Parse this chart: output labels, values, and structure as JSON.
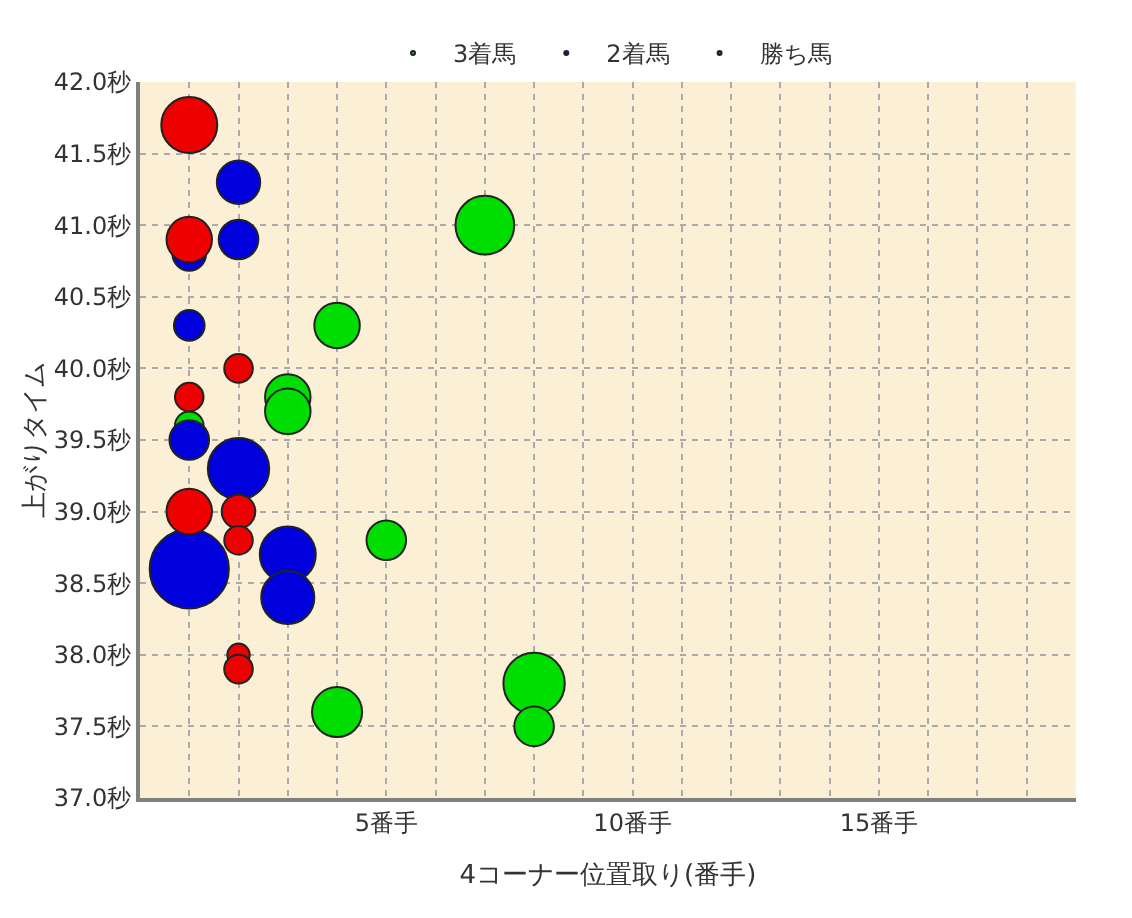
{
  "chart_data": {
    "type": "bubble",
    "xlabel": "4コーナー位置取り(番手)",
    "ylabel": "上がりタイム",
    "xlim": [
      0,
      19
    ],
    "ylim": [
      37.0,
      42.0
    ],
    "xticks": [
      {
        "value": 1,
        "label": null
      },
      {
        "value": 2,
        "label": null
      },
      {
        "value": 3,
        "label": null
      },
      {
        "value": 4,
        "label": null
      },
      {
        "value": 5,
        "label": "5番手"
      },
      {
        "value": 6,
        "label": null
      },
      {
        "value": 7,
        "label": null
      },
      {
        "value": 8,
        "label": null
      },
      {
        "value": 9,
        "label": null
      },
      {
        "value": 10,
        "label": "10番手"
      },
      {
        "value": 11,
        "label": null
      },
      {
        "value": 12,
        "label": null
      },
      {
        "value": 13,
        "label": null
      },
      {
        "value": 14,
        "label": null
      },
      {
        "value": 15,
        "label": "15番手"
      },
      {
        "value": 16,
        "label": null
      },
      {
        "value": 17,
        "label": null
      },
      {
        "value": 18,
        "label": null
      }
    ],
    "yticks": [
      {
        "value": 37.0,
        "label": "37.0秒"
      },
      {
        "value": 37.5,
        "label": "37.5秒"
      },
      {
        "value": 38.0,
        "label": "38.0秒"
      },
      {
        "value": 38.5,
        "label": "38.5秒"
      },
      {
        "value": 39.0,
        "label": "39.0秒"
      },
      {
        "value": 39.5,
        "label": "39.5秒"
      },
      {
        "value": 40.0,
        "label": "40.0秒"
      },
      {
        "value": 40.5,
        "label": "40.5秒"
      },
      {
        "value": 41.0,
        "label": "41.0秒"
      },
      {
        "value": 41.5,
        "label": "41.5秒"
      },
      {
        "value": 42.0,
        "label": "42.0秒"
      }
    ],
    "grid": true,
    "legend": "top",
    "series": [
      {
        "name": "3着馬",
        "color": "#00dd00",
        "x": [
          7,
          4,
          3,
          3,
          1,
          5,
          8,
          4,
          8
        ],
        "values": [
          41.0,
          40.3,
          39.8,
          39.7,
          39.6,
          38.8,
          37.8,
          37.6,
          37.5
        ],
        "sizes": [
          0.55,
          0.33,
          0.33,
          0.33,
          0.13,
          0.25,
          0.6,
          0.4,
          0.25
        ]
      },
      {
        "name": "2着馬",
        "color": "#0000dd",
        "x": [
          2,
          1,
          2,
          1,
          1,
          2,
          1,
          3,
          3
        ],
        "values": [
          41.3,
          40.8,
          40.9,
          40.3,
          39.5,
          39.3,
          38.6,
          38.7,
          38.4
        ],
        "sizes": [
          0.3,
          0.18,
          0.25,
          0.15,
          0.25,
          0.6,
          1,
          0.5,
          0.45
        ]
      },
      {
        "name": "勝ち馬",
        "color": "#ee0000",
        "x": [
          1,
          1,
          2,
          1,
          1,
          2,
          2,
          2,
          2
        ],
        "values": [
          41.7,
          40.9,
          40.0,
          39.8,
          39.0,
          39.0,
          38.8,
          38.0,
          37.9
        ],
        "sizes": [
          0.5,
          0.33,
          0.13,
          0.13,
          0.33,
          0.18,
          0.13,
          0.08,
          0.13
        ]
      }
    ]
  }
}
